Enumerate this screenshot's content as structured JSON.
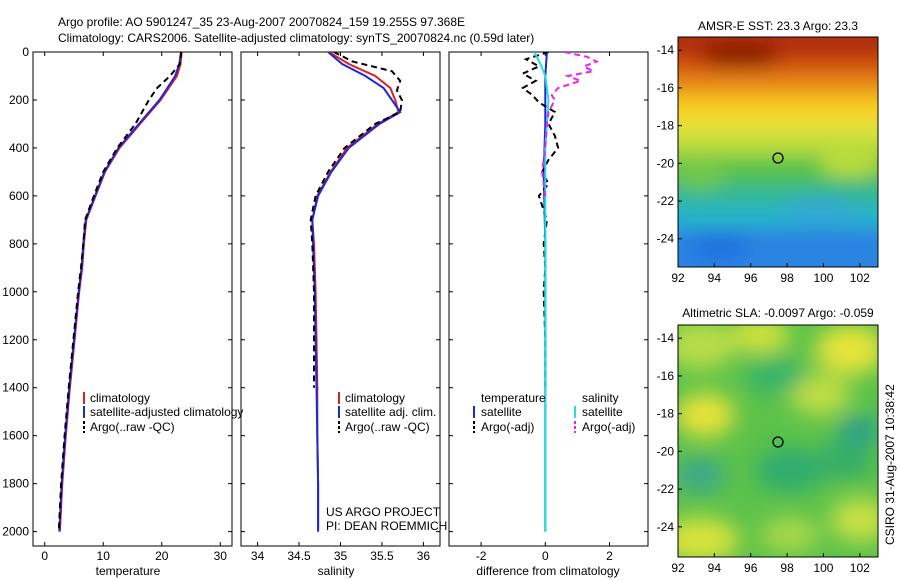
{
  "header": {
    "line1": "Argo profile: AO 5901247_35 23-Aug-2007 20070824_159 19.255S 97.368E",
    "line2": "Climatology: CARS2006. Satellite-adjusted climatology: synTS_20070824.nc (0.59d later)"
  },
  "colors": {
    "climatology": "#e02020",
    "satellite": "#1a2ad8",
    "argo": "#000000",
    "sat_salinity": "#22e0e0",
    "argo_salinity": "#ee22ee"
  },
  "chart_data": [
    {
      "type": "line",
      "xlabel": "temperature",
      "ylabel": "",
      "xlim": [
        -2,
        32
      ],
      "ylim": [
        2060,
        0
      ],
      "xticks": [
        "0",
        "10",
        "20",
        "30"
      ],
      "yticks": [
        "0",
        "200",
        "400",
        "600",
        "800",
        "1000",
        "1200",
        "1400",
        "1600",
        "1800",
        "2000"
      ],
      "legend": [
        "climatology",
        "satellite-adjusted climatology",
        "Argo(..raw -QC)"
      ],
      "series": [
        {
          "name": "climatology",
          "depth": [
            0,
            50,
            100,
            200,
            300,
            400,
            500,
            600,
            700,
            800,
            900,
            1000,
            1200,
            1400,
            1600,
            1800,
            2000
          ],
          "values": [
            23.4,
            23.2,
            22.6,
            19.8,
            16.3,
            12.8,
            10.3,
            8.7,
            7.1,
            6.7,
            6.4,
            5.9,
            5.1,
            4.3,
            3.6,
            3.0,
            2.6
          ]
        },
        {
          "name": "satellite-adjusted climatology",
          "depth": [
            0,
            50,
            100,
            200,
            300,
            400,
            500,
            600,
            700,
            800,
            900,
            1000,
            1200,
            1400,
            1600,
            1800,
            2000
          ],
          "values": [
            23.3,
            23.0,
            22.3,
            19.6,
            16.1,
            12.6,
            10.2,
            8.6,
            7.0,
            6.6,
            6.3,
            5.8,
            5.0,
            4.2,
            3.5,
            2.9,
            2.5
          ]
        },
        {
          "name": "Argo(..raw -QC)",
          "depth": [
            0,
            50,
            100,
            150,
            200,
            300,
            400,
            500,
            600,
            700,
            800,
            900,
            1000,
            1200,
            1400,
            1600,
            1800,
            2000
          ],
          "values": [
            23.3,
            23.1,
            21.4,
            19.2,
            17.8,
            15.5,
            12.4,
            10.0,
            8.4,
            6.9,
            6.6,
            6.2,
            5.7,
            4.9,
            4.1,
            3.4,
            2.8,
            2.4
          ]
        }
      ]
    },
    {
      "type": "line",
      "xlabel": "salinity",
      "xlim": [
        33.8,
        36.2
      ],
      "ylim": [
        2060,
        0
      ],
      "xticks": [
        "34",
        "34.5",
        "35",
        "35.5",
        "36"
      ],
      "legend": [
        "climatology",
        "satellite adj. clim.",
        "Argo(..raw -QC)"
      ],
      "annotation": [
        "US ARGO PROJECT",
        "PI: DEAN ROEMMICH"
      ],
      "series": [
        {
          "name": "climatology",
          "depth": [
            0,
            50,
            100,
            150,
            200,
            250,
            300,
            400,
            500,
            600,
            700,
            800,
            1000,
            1200,
            1400,
            1600,
            1800,
            2000
          ],
          "values": [
            34.86,
            35.1,
            35.42,
            35.6,
            35.66,
            35.7,
            35.45,
            35.08,
            34.88,
            34.72,
            34.66,
            34.68,
            34.7,
            34.71,
            34.72,
            34.72,
            34.73,
            34.73
          ]
        },
        {
          "name": "satellite adj. clim.",
          "depth": [
            0,
            50,
            100,
            150,
            200,
            250,
            300,
            400,
            500,
            600,
            700,
            800,
            1000,
            1200,
            1400,
            1600,
            1800,
            2000
          ],
          "values": [
            34.85,
            35.02,
            35.3,
            35.52,
            35.62,
            35.72,
            35.47,
            35.1,
            34.89,
            34.73,
            34.66,
            34.67,
            34.69,
            34.7,
            34.71,
            34.72,
            34.73,
            34.73
          ]
        },
        {
          "name": "Argo(..raw -QC)",
          "depth": [
            0,
            40,
            80,
            120,
            160,
            200,
            250,
            300,
            400,
            500,
            600,
            700,
            800,
            1000,
            1200,
            1400
          ],
          "values": [
            34.92,
            35.15,
            35.62,
            35.72,
            35.68,
            35.74,
            35.72,
            35.42,
            35.05,
            34.85,
            34.7,
            34.64,
            34.66,
            34.68,
            34.68,
            34.68
          ]
        }
      ]
    },
    {
      "type": "line",
      "xlabel": "difference from climatology",
      "xlim": [
        -3,
        3.2
      ],
      "ylim": [
        2060,
        0
      ],
      "xticks": [
        "-2",
        "0",
        "2"
      ],
      "legend_left": [
        "temperature",
        "satellite",
        "Argo(-adj)"
      ],
      "legend_right": [
        "salinity",
        "satellite",
        "Argo(-adj)"
      ],
      "series": [
        {
          "name": "temperature satellite",
          "depth": [
            0,
            100,
            300,
            500,
            800,
            1000,
            1500,
            2000
          ],
          "values": [
            0.05,
            0.0,
            0.0,
            -0.05,
            0.0,
            0.0,
            0.0,
            0.0
          ]
        },
        {
          "name": "temperature Argo(-adj)",
          "depth": [
            0,
            30,
            60,
            90,
            120,
            150,
            180,
            210,
            250,
            300,
            350,
            400,
            450,
            500,
            550,
            600,
            700,
            800,
            900,
            1000,
            1200,
            1400
          ],
          "values": [
            0.1,
            -0.6,
            -0.2,
            -0.7,
            -0.3,
            -0.7,
            -0.4,
            -0.2,
            0.3,
            0.1,
            0.3,
            0.4,
            0.1,
            -0.1,
            0.1,
            -0.2,
            0.05,
            -0.05,
            0.0,
            -0.05,
            0.0,
            0.0
          ]
        },
        {
          "name": "salinity satellite",
          "depth": [
            0,
            50,
            100,
            200,
            300,
            400,
            600,
            800,
            1000,
            1500,
            2000
          ],
          "values": [
            -0.35,
            -0.15,
            0.0,
            0.1,
            0.05,
            0.0,
            0.0,
            0.0,
            0.0,
            0.0,
            0.0
          ]
        },
        {
          "name": "salinity Argo(-adj)",
          "depth": [
            0,
            20,
            40,
            60,
            80,
            100,
            120,
            150,
            180,
            200,
            250,
            300,
            400,
            500,
            600
          ],
          "values": [
            0.6,
            1.3,
            1.6,
            1.2,
            1.5,
            0.7,
            1.1,
            0.4,
            0.2,
            0.3,
            0.1,
            0.05,
            0.0,
            -0.1,
            0.0
          ]
        }
      ]
    }
  ],
  "maps": [
    {
      "title": "AMSR-E SST: 23.3 Argo: 23.3",
      "xticks": [
        "92",
        "94",
        "96",
        "98",
        "100",
        "102"
      ],
      "yticks": [
        "-14",
        "-16",
        "-18",
        "-20",
        "-22",
        "-24"
      ],
      "marker": {
        "lon": 97.37,
        "lat": -19.26
      }
    },
    {
      "title": "Altimetric SLA: -0.0097 Argo: -0.059",
      "xticks": [
        "92",
        "94",
        "96",
        "98",
        "100",
        "102"
      ],
      "yticks": [
        "-14",
        "-16",
        "-18",
        "-20",
        "-22",
        "-24"
      ],
      "marker": {
        "lon": 97.37,
        "lat": -19.26
      },
      "side_label": "CSIRO 31-Aug-2007 10:38:42"
    }
  ]
}
